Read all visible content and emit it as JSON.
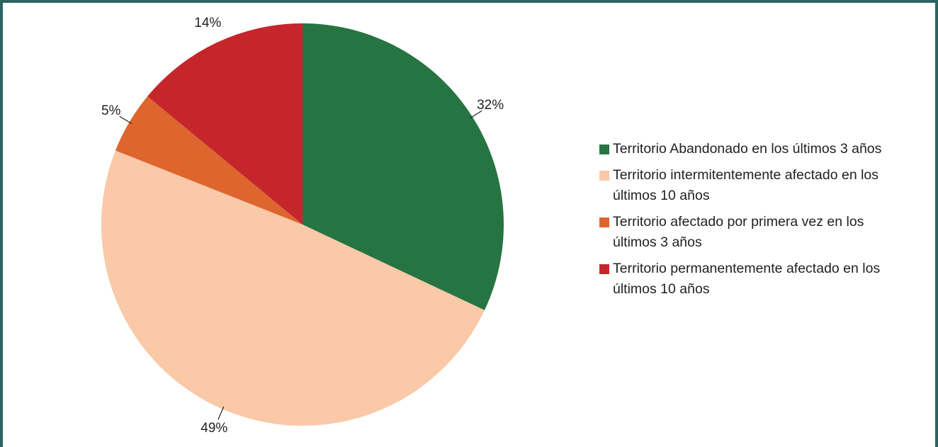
{
  "chart_data": {
    "type": "pie",
    "categories": [
      "Territorio Abandonado en los últimos 3 años",
      "Territorio intermitentemente afectado en los últimos 10 años",
      "Territorio afectado por primera vez en los últimos 3 años",
      "Territorio permanentemente afectado en los últimos 10 años"
    ],
    "values": [
      32,
      49,
      5,
      14
    ],
    "value_labels": [
      "32%",
      "49%",
      "5%",
      "14%"
    ],
    "colors": [
      "#277443",
      "#f9c9a8",
      "#de652e",
      "#c5262c"
    ],
    "legend": "right"
  }
}
